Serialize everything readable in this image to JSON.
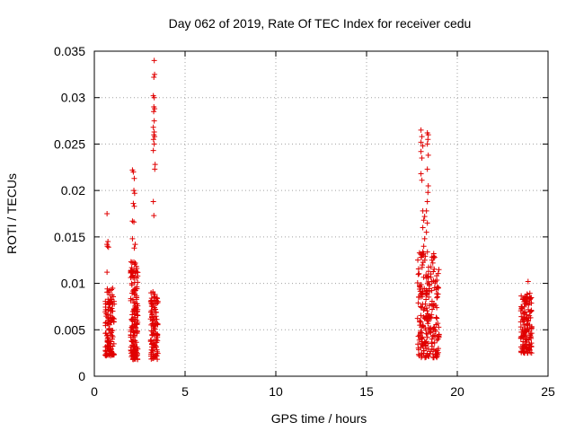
{
  "chart_data": {
    "type": "scatter",
    "title": "Day 062 of 2019, Rate Of TEC Index for receiver cedu",
    "xlabel": "GPS time / hours",
    "ylabel": "ROTI / TECUs",
    "xlim": [
      0,
      25
    ],
    "ylim": [
      0,
      0.035
    ],
    "xticks": [
      0,
      5,
      10,
      15,
      20,
      25
    ],
    "xtick_labels": [
      "0",
      "5",
      "10",
      "15",
      "20",
      "25"
    ],
    "yticks": [
      0,
      0.005,
      0.01,
      0.015,
      0.02,
      0.025,
      0.03,
      0.035
    ],
    "ytick_labels": [
      "0",
      "0.005",
      "0.01",
      "0.015",
      "0.02",
      "0.025",
      "0.03",
      "0.035"
    ],
    "grid": true,
    "marker": "+",
    "color": "#e00000",
    "clusters": [
      {
        "x_range": [
          0.6,
          1.1
        ],
        "y_range": [
          0.0022,
          0.0095
        ],
        "count": 130
      },
      {
        "x_range": [
          2.0,
          2.4
        ],
        "y_range": [
          0.0018,
          0.0125
        ],
        "count": 170
      },
      {
        "x_range": [
          3.1,
          3.5
        ],
        "y_range": [
          0.0018,
          0.0095
        ],
        "count": 110
      },
      {
        "x_range": [
          17.8,
          19.0
        ],
        "y_range": [
          0.002,
          0.0135
        ],
        "count": 230
      },
      {
        "x_range": [
          23.5,
          24.1
        ],
        "y_range": [
          0.0025,
          0.009
        ],
        "count": 150
      }
    ],
    "points": [
      {
        "x": 0.7,
        "y": 0.0175
      },
      {
        "x": 0.7,
        "y": 0.0142
      },
      {
        "x": 0.72,
        "y": 0.014
      },
      {
        "x": 0.75,
        "y": 0.0145
      },
      {
        "x": 0.78,
        "y": 0.0139
      },
      {
        "x": 0.7,
        "y": 0.0112
      },
      {
        "x": 2.1,
        "y": 0.0222
      },
      {
        "x": 2.15,
        "y": 0.022
      },
      {
        "x": 2.2,
        "y": 0.0213
      },
      {
        "x": 2.18,
        "y": 0.02
      },
      {
        "x": 2.22,
        "y": 0.0197
      },
      {
        "x": 2.15,
        "y": 0.0186
      },
      {
        "x": 2.2,
        "y": 0.0183
      },
      {
        "x": 2.1,
        "y": 0.0167
      },
      {
        "x": 2.18,
        "y": 0.0166
      },
      {
        "x": 2.1,
        "y": 0.0148
      },
      {
        "x": 2.25,
        "y": 0.0142
      },
      {
        "x": 2.2,
        "y": 0.0138
      },
      {
        "x": 3.3,
        "y": 0.034
      },
      {
        "x": 3.32,
        "y": 0.0325
      },
      {
        "x": 3.28,
        "y": 0.0322
      },
      {
        "x": 3.25,
        "y": 0.0302
      },
      {
        "x": 3.3,
        "y": 0.03
      },
      {
        "x": 3.28,
        "y": 0.029
      },
      {
        "x": 3.32,
        "y": 0.0288
      },
      {
        "x": 3.27,
        "y": 0.0285
      },
      {
        "x": 3.3,
        "y": 0.0275
      },
      {
        "x": 3.25,
        "y": 0.0268
      },
      {
        "x": 3.3,
        "y": 0.0263
      },
      {
        "x": 3.28,
        "y": 0.026
      },
      {
        "x": 3.32,
        "y": 0.0258
      },
      {
        "x": 3.26,
        "y": 0.0255
      },
      {
        "x": 3.3,
        "y": 0.025
      },
      {
        "x": 3.25,
        "y": 0.0243
      },
      {
        "x": 3.35,
        "y": 0.0228
      },
      {
        "x": 3.33,
        "y": 0.0223
      },
      {
        "x": 3.25,
        "y": 0.0188
      },
      {
        "x": 3.28,
        "y": 0.0173
      },
      {
        "x": 3.28,
        "y": 0.0088
      },
      {
        "x": 3.3,
        "y": 0.0085
      },
      {
        "x": 3.32,
        "y": 0.0082
      },
      {
        "x": 3.27,
        "y": 0.0078
      },
      {
        "x": 18.0,
        "y": 0.0265
      },
      {
        "x": 18.05,
        "y": 0.0258
      },
      {
        "x": 18.0,
        "y": 0.0252
      },
      {
        "x": 18.1,
        "y": 0.0248
      },
      {
        "x": 18.0,
        "y": 0.0242
      },
      {
        "x": 18.05,
        "y": 0.0235
      },
      {
        "x": 18.0,
        "y": 0.0218
      },
      {
        "x": 18.05,
        "y": 0.0211
      },
      {
        "x": 18.35,
        "y": 0.0262
      },
      {
        "x": 18.4,
        "y": 0.026
      },
      {
        "x": 18.38,
        "y": 0.0255
      },
      {
        "x": 18.35,
        "y": 0.025
      },
      {
        "x": 18.4,
        "y": 0.0238
      },
      {
        "x": 18.35,
        "y": 0.0223
      },
      {
        "x": 18.4,
        "y": 0.0205
      },
      {
        "x": 18.38,
        "y": 0.0198
      },
      {
        "x": 18.35,
        "y": 0.0188
      },
      {
        "x": 18.3,
        "y": 0.0178
      },
      {
        "x": 18.1,
        "y": 0.0178
      },
      {
        "x": 18.2,
        "y": 0.0172
      },
      {
        "x": 18.15,
        "y": 0.0168
      },
      {
        "x": 18.35,
        "y": 0.0165
      },
      {
        "x": 18.1,
        "y": 0.016
      },
      {
        "x": 18.3,
        "y": 0.0155
      },
      {
        "x": 18.2,
        "y": 0.0148
      },
      {
        "x": 18.15,
        "y": 0.014
      },
      {
        "x": 18.7,
        "y": 0.0132
      },
      {
        "x": 18.75,
        "y": 0.0128
      },
      {
        "x": 18.6,
        "y": 0.0125
      },
      {
        "x": 18.65,
        "y": 0.0122
      },
      {
        "x": 23.9,
        "y": 0.0102
      }
    ]
  }
}
